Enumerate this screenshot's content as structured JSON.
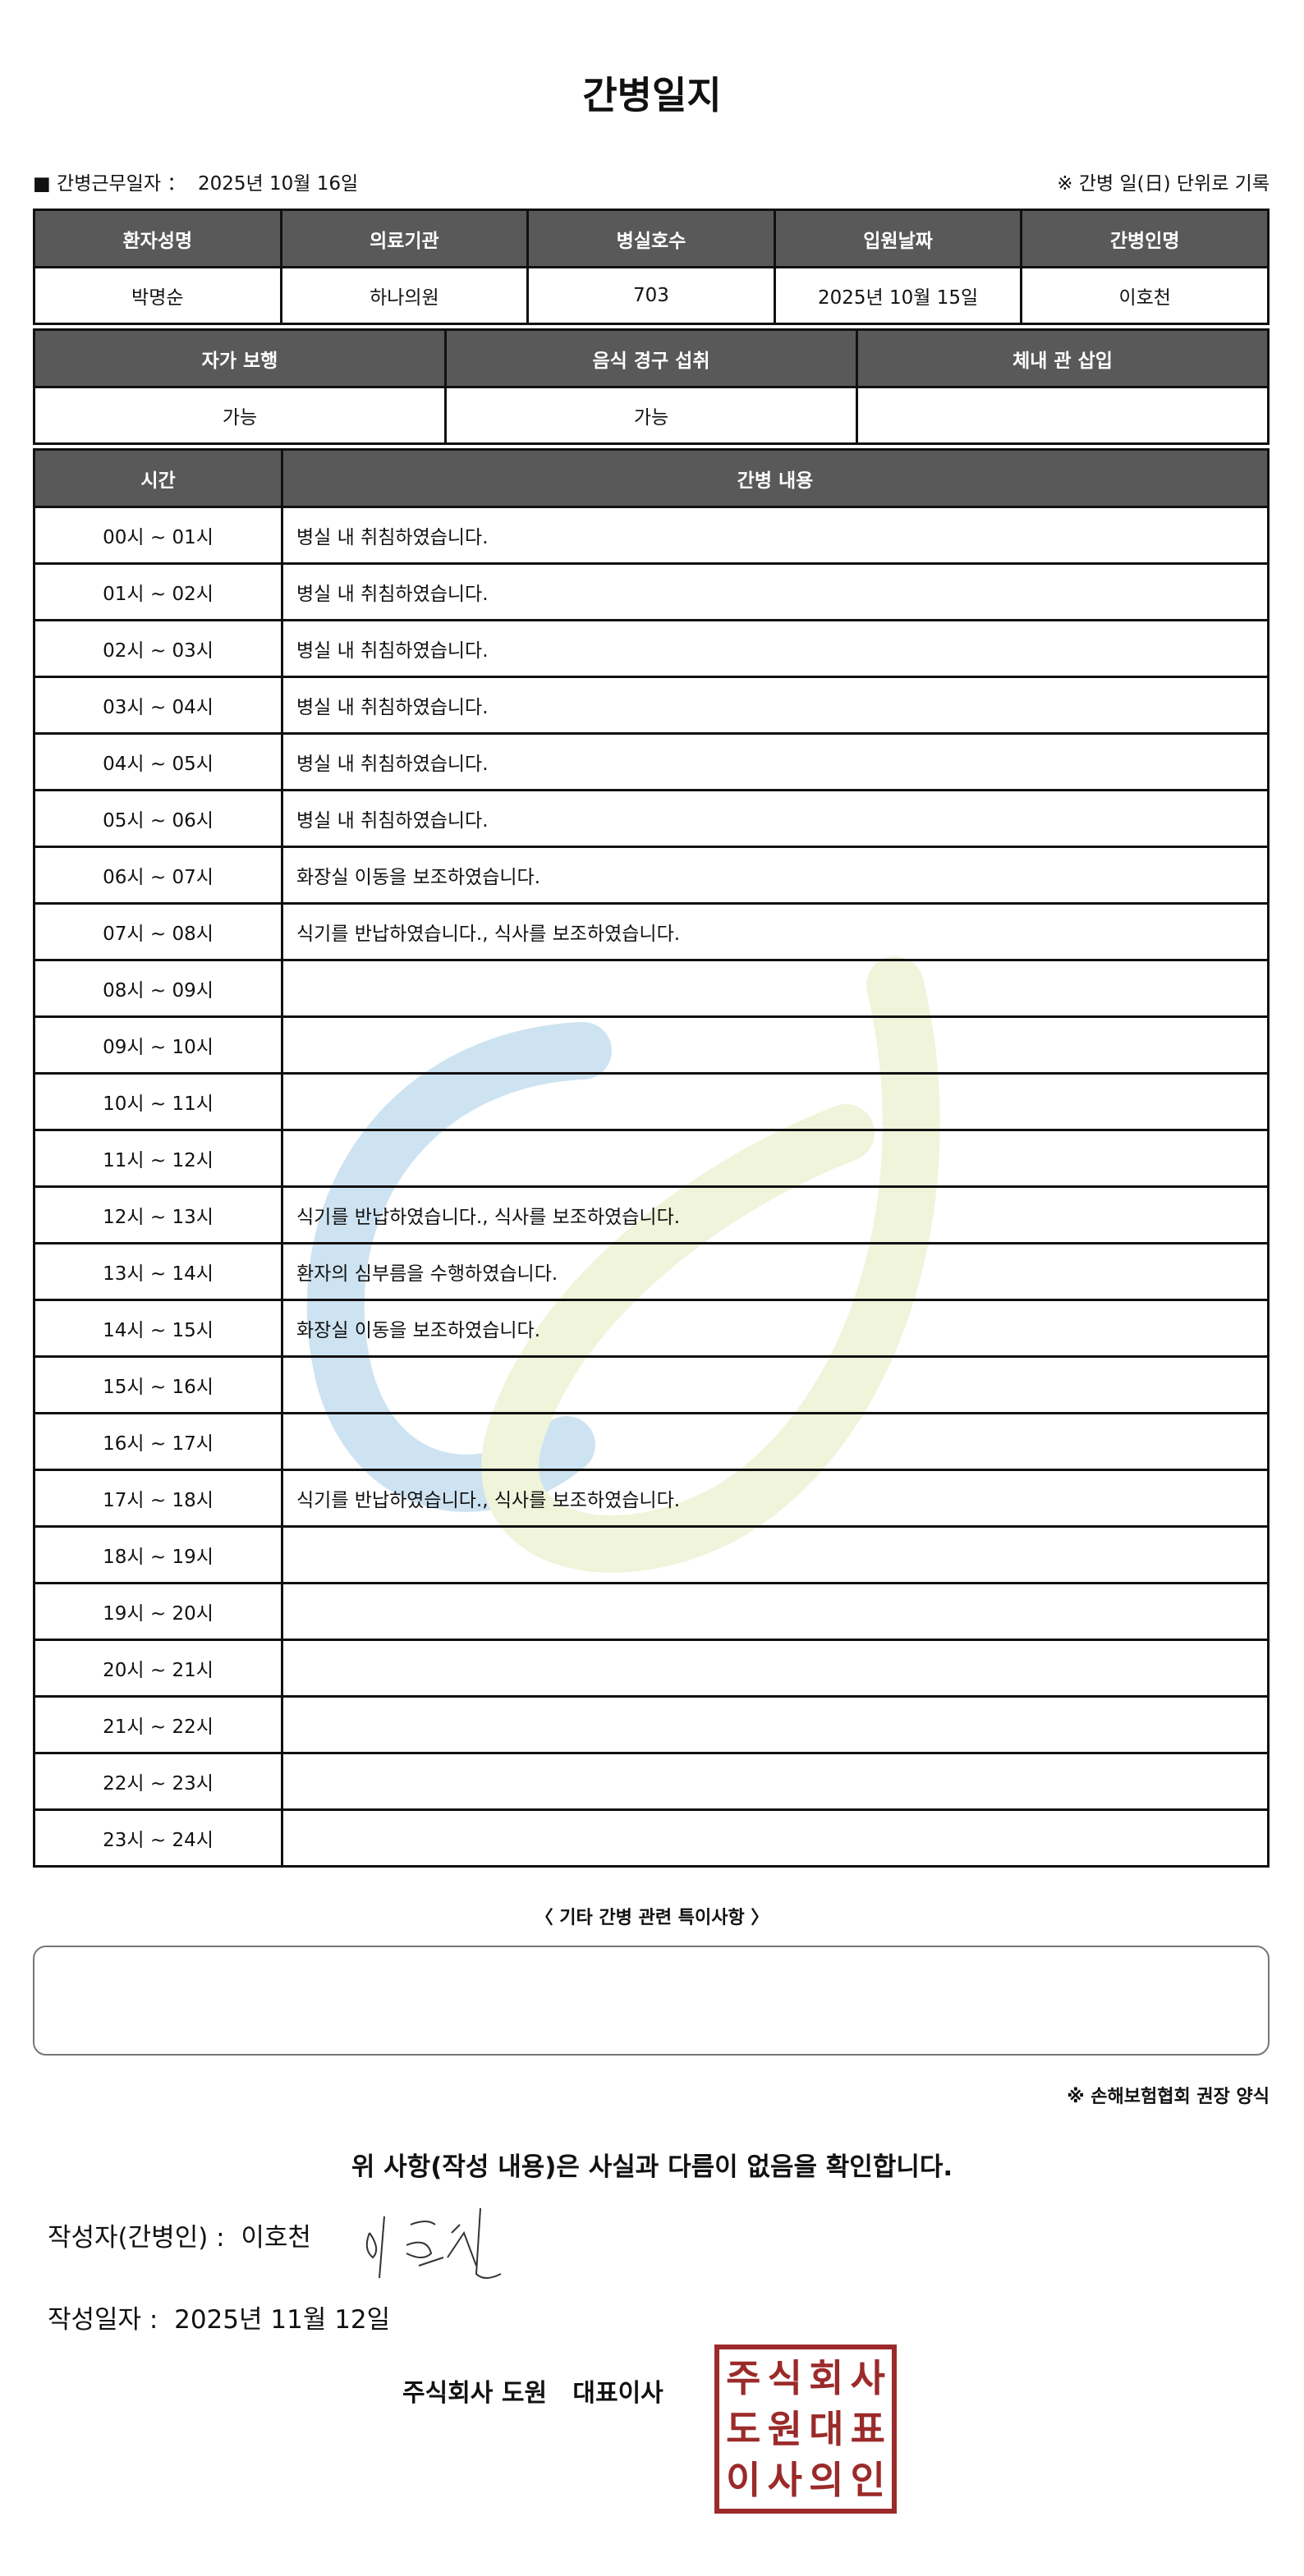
{
  "title": "간병일지",
  "work_date_label": "■ 간병근무일자 ：",
  "work_date": "2025년 10월 16일",
  "unit_note": "※ 간병 일(日) 단위로 기록",
  "info": {
    "headers": [
      "환자성명",
      "의료기관",
      "병실호수",
      "입원날짜",
      "간병인명"
    ],
    "values": [
      "박명순",
      "하나의원",
      "703",
      "2025년 10월 15일",
      "이호천"
    ]
  },
  "status": {
    "headers": [
      "자가 보행",
      "음식 경구 섭취",
      "체내 관 삽입"
    ],
    "values": [
      "가능",
      "가능",
      ""
    ]
  },
  "log": {
    "headers": [
      "시간",
      "간병 내용"
    ],
    "rows": [
      [
        "00시 ~ 01시",
        "병실 내 취침하였습니다."
      ],
      [
        "01시 ~ 02시",
        "병실 내 취침하였습니다."
      ],
      [
        "02시 ~ 03시",
        "병실 내 취침하였습니다."
      ],
      [
        "03시 ~ 04시",
        "병실 내 취침하였습니다."
      ],
      [
        "04시 ~ 05시",
        "병실 내 취침하였습니다."
      ],
      [
        "05시 ~ 06시",
        "병실 내 취침하였습니다."
      ],
      [
        "06시 ~ 07시",
        "화장실 이동을 보조하였습니다."
      ],
      [
        "07시 ~ 08시",
        "식기를 반납하였습니다., 식사를 보조하였습니다."
      ],
      [
        "08시 ~ 09시",
        ""
      ],
      [
        "09시 ~ 10시",
        ""
      ],
      [
        "10시 ~ 11시",
        ""
      ],
      [
        "11시 ~ 12시",
        ""
      ],
      [
        "12시 ~ 13시",
        "식기를 반납하였습니다., 식사를 보조하였습니다."
      ],
      [
        "13시 ~ 14시",
        "환자의 심부름을 수행하였습니다."
      ],
      [
        "14시 ~ 15시",
        "화장실 이동을 보조하였습니다."
      ],
      [
        "15시 ~ 16시",
        ""
      ],
      [
        "16시 ~ 17시",
        ""
      ],
      [
        "17시 ~ 18시",
        "식기를 반납하였습니다., 식사를 보조하였습니다."
      ],
      [
        "18시 ~ 19시",
        ""
      ],
      [
        "19시 ~ 20시",
        ""
      ],
      [
        "20시 ~ 21시",
        ""
      ],
      [
        "21시 ~ 22시",
        ""
      ],
      [
        "22시 ~ 23시",
        ""
      ],
      [
        "23시 ~ 24시",
        ""
      ]
    ]
  },
  "notes_label": "〈 기타 간병 관련 특이사항 〉",
  "notes_value": "",
  "recommend": "※ 손해보험협회 권장 양식",
  "confirm": "위 사항(작성 내용)은 사실과 다름이 없음을 확인합니다.",
  "author_label": "작성자(간병인) :",
  "author": "이호천",
  "signature": "이호천",
  "written_label": "작성일자 :",
  "written_date": "2025년 11월 12일",
  "company": "주식회사 도원   대표이사",
  "stamp": "주식회사도원대표이사의인",
  "colors": {
    "header_bg": "#595959",
    "stamp": "#9b2a2a",
    "watermark_blue": "#c9e0f0",
    "watermark_green": "#eef3d6"
  }
}
